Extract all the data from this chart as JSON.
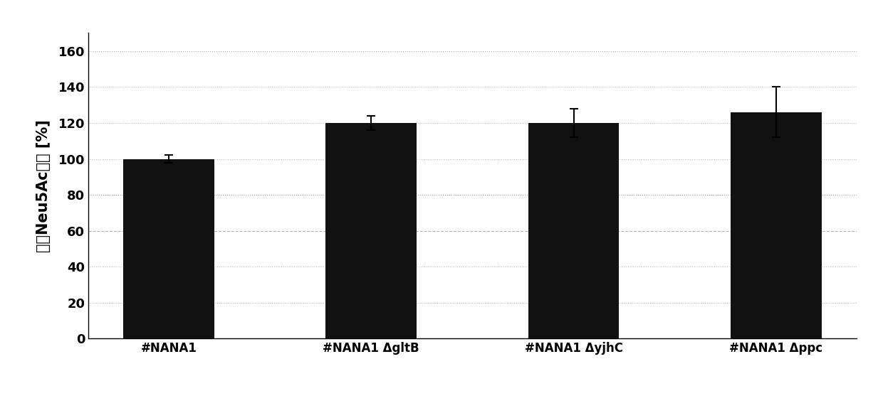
{
  "categories": [
    "#NANA1",
    "#NANA1 ΔgltB",
    "#NANA1 ΔyjhC",
    "#NANA1 Δppc"
  ],
  "values": [
    100,
    120,
    120,
    126
  ],
  "errors": [
    2,
    4,
    8,
    14
  ],
  "bar_color": "#111111",
  "bar_width": 0.45,
  "ylabel": "相对Neu5Ac产量 [%]",
  "ylim": [
    0,
    170
  ],
  "yticks": [
    0,
    20,
    40,
    60,
    80,
    100,
    120,
    140,
    160
  ],
  "background_color": "#ffffff",
  "ylabel_fontsize": 15,
  "tick_fontsize": 13,
  "xtick_fontsize": 12
}
